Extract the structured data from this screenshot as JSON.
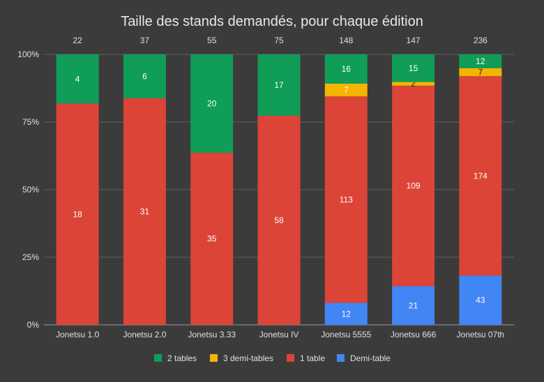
{
  "chart_data": {
    "type": "bar",
    "stacked": "percent",
    "title": "Taille des stands demandés, pour chaque édition",
    "categories": [
      "Jonetsu 1.0",
      "Jonetsu 2.0",
      "Jonetsu 3.33",
      "Jonetsu IV",
      "Jonetsu 5555",
      "Jonetsu 666",
      "Jonetsu 07th"
    ],
    "totals": [
      "22",
      "37",
      "55",
      "75",
      "148",
      "147",
      "236"
    ],
    "series": [
      {
        "name": "Demi-table",
        "color": "#4285f4",
        "values": [
          0,
          0,
          0,
          0,
          12,
          21,
          43
        ]
      },
      {
        "name": "1 table",
        "color": "#db4437",
        "values": [
          18,
          31,
          35,
          58,
          113,
          109,
          174
        ]
      },
      {
        "name": "3 demi-tables",
        "color": "#f4b400",
        "values": [
          0,
          0,
          0,
          0,
          7,
          2,
          7
        ]
      },
      {
        "name": "2 tables",
        "color": "#0f9d58",
        "values": [
          4,
          6,
          20,
          17,
          16,
          15,
          12
        ]
      }
    ],
    "legend_order": [
      "2 tables",
      "3 demi-tables",
      "1 table",
      "Demi-table"
    ],
    "y_ticks": [
      "0%",
      "25%",
      "50%",
      "75%",
      "100%"
    ],
    "ylim": [
      0,
      100
    ],
    "grid": true,
    "legend": "bottom"
  }
}
